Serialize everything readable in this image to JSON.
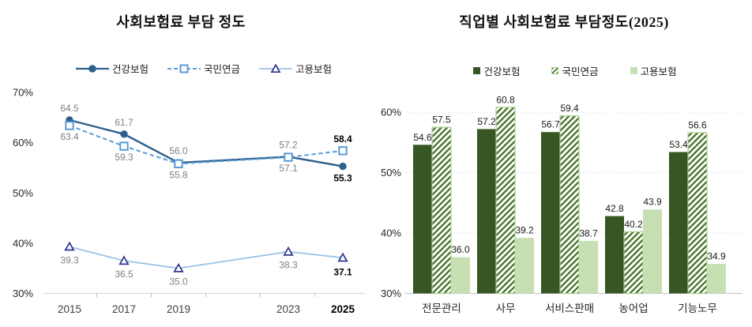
{
  "charts": [
    {
      "title": "사회보험료 부담 정도",
      "chart_data": {
        "type": "line",
        "x": [
          "2015",
          "2017",
          "2019",
          "2023",
          "2025"
        ],
        "x_years": [
          2015,
          2017,
          2019,
          2023,
          2025
        ],
        "series": [
          {
            "name": "건강보험",
            "values": [
              64.5,
              61.7,
              56.0,
              57.2,
              55.3
            ],
            "color": "#2d5f8e",
            "marker": "circle",
            "line_style": "solid",
            "label_side": [
              "above",
              "above",
              "above",
              "above",
              "below"
            ]
          },
          {
            "name": "국민연금",
            "values": [
              63.4,
              59.3,
              55.8,
              57.1,
              58.4
            ],
            "color": "#5b9bd5",
            "marker": "square",
            "line_style": "dashed",
            "label_side": [
              "below",
              "below",
              "below",
              "below",
              "above"
            ]
          },
          {
            "name": "고용보험",
            "values": [
              39.3,
              36.5,
              35.0,
              38.3,
              37.1
            ],
            "color": "#9dc3e6",
            "marker": "triangle",
            "marker_color": "#2c3490",
            "line_style": "solid",
            "label_side": [
              "below",
              "below",
              "below",
              "below",
              "below"
            ]
          }
        ],
        "yticks": [
          30,
          40,
          50,
          60,
          70
        ],
        "ytick_suffix": "%",
        "ylim": [
          30,
          72
        ],
        "grid": false,
        "legend_position": "top",
        "data_label_color": "#7f7f7f",
        "emphasized_x": "2025",
        "emphasis_color": "#000000"
      }
    },
    {
      "title": "직업별 사회보험료 부담정도(2025)",
      "chart_data": {
        "type": "bar",
        "categories": [
          "전문관리",
          "사무",
          "서비스판매",
          "농어업",
          "기능노무"
        ],
        "series": [
          {
            "name": "건강보험",
            "values": [
              54.6,
              57.2,
              56.7,
              42.8,
              53.4
            ],
            "fill": "solid",
            "color": "#375623"
          },
          {
            "name": "국민연금",
            "values": [
              57.5,
              60.8,
              59.4,
              40.2,
              56.6
            ],
            "fill": "hatch",
            "color": "#4a7228",
            "border_color": "#a9d18e"
          },
          {
            "name": "고용보험",
            "values": [
              36.0,
              39.2,
              38.7,
              43.9,
              34.9
            ],
            "fill": "solid",
            "color": "#c6e0b4"
          }
        ],
        "yticks": [
          30,
          40,
          50,
          60
        ],
        "ytick_suffix": "%",
        "ylim": [
          30,
          63
        ],
        "grid": true,
        "gridline_yticks": [
          40,
          50,
          60
        ],
        "legend_position": "top",
        "data_label_color": "#1a1a1a"
      }
    }
  ],
  "colors": {
    "background": "#ffffff",
    "axis_line": "#d9d9d9",
    "tick_mark": "#bfbfbf",
    "axis_label": "#262626",
    "year_label": "#404040",
    "title_text": "#101010"
  }
}
